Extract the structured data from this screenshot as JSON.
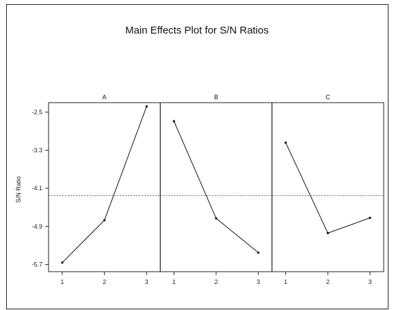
{
  "chart_data": {
    "type": "line",
    "title": "Main Effects Plot for S/N Ratios",
    "ylabel": "S/N Ratio",
    "ylim": [
      -5.85,
      -2.3
    ],
    "yticks": [
      "-2.5",
      "-3.3",
      "-4.1",
      "-4.9",
      "-5.7"
    ],
    "yticks_values": [
      -2.5,
      -3.3,
      -4.1,
      -4.9,
      -5.7
    ],
    "x_tick_labels": [
      "1",
      "2",
      "3"
    ],
    "reference_line": -4.25,
    "reference_color": "#e03030",
    "line_color": "#111111",
    "grid": false,
    "panels": [
      {
        "name": "A",
        "x": [
          1,
          2,
          3
        ],
        "values": [
          -5.66,
          -4.77,
          -2.38
        ]
      },
      {
        "name": "B",
        "x": [
          1,
          2,
          3
        ],
        "values": [
          -2.69,
          -4.73,
          -5.45
        ]
      },
      {
        "name": "C",
        "x": [
          1,
          2,
          3
        ],
        "values": [
          -3.14,
          -5.04,
          -4.72
        ]
      }
    ]
  }
}
